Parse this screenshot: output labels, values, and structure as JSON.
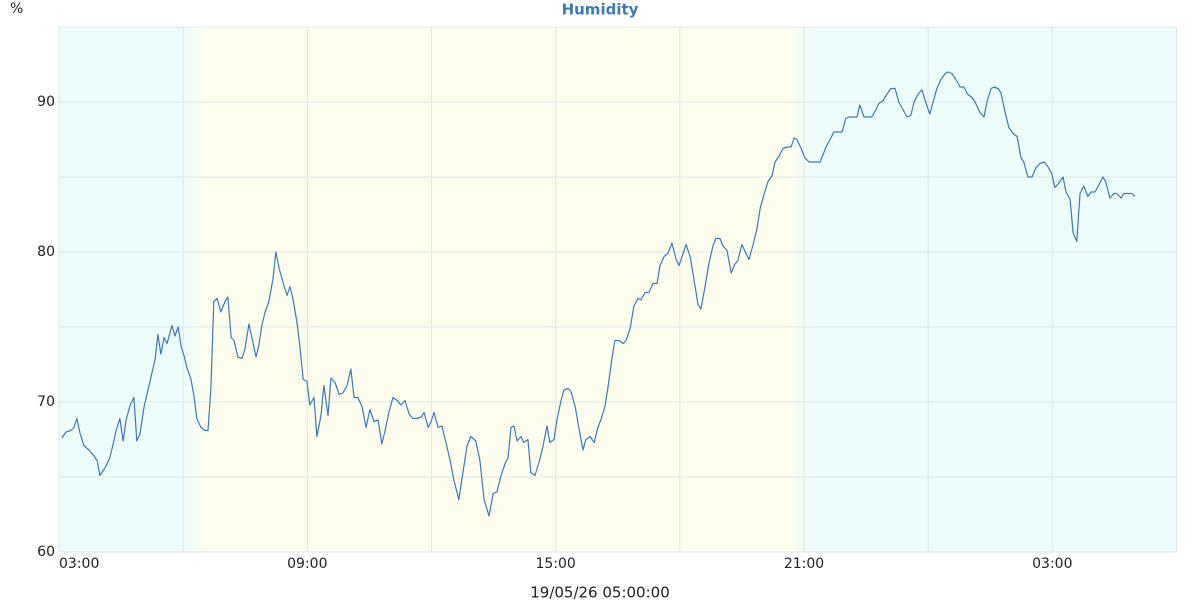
{
  "chart_data": {
    "type": "line",
    "title": "Humidity",
    "y_unit_label": "%",
    "xlabel": "19/05/26 05:00:00",
    "color": "#3d7ab8",
    "grid": true,
    "xlim": [
      0,
      27
    ],
    "ylim": [
      60,
      95
    ],
    "xticks": [
      {
        "value": 0,
        "label": "03:00"
      },
      {
        "value": 6,
        "label": "09:00"
      },
      {
        "value": 12,
        "label": "15:00"
      },
      {
        "value": 18,
        "label": "21:00"
      },
      {
        "value": 24,
        "label": "03:00"
      }
    ],
    "minor_xticks": [
      3,
      9,
      15,
      21,
      27
    ],
    "yticks": [
      60,
      70,
      80,
      90
    ],
    "minor_yticks": [
      65,
      75,
      85,
      95
    ],
    "bands": [
      {
        "from": 0,
        "to": 3,
        "color": "#edfcfc"
      },
      {
        "from": 3.6,
        "to": 17.6,
        "color": "#fdfdee"
      },
      {
        "from": 18.3,
        "to": 27,
        "color": "#edfcfc"
      }
    ],
    "x": [
      0.07,
      0.17,
      0.29,
      0.36,
      0.43,
      0.51,
      0.6,
      0.72,
      0.82,
      0.92,
      0.99,
      1.11,
      1.23,
      1.3,
      1.38,
      1.47,
      1.55,
      1.62,
      1.72,
      1.81,
      1.88,
      1.96,
      2.05,
      2.15,
      2.25,
      2.32,
      2.39,
      2.46,
      2.54,
      2.61,
      2.73,
      2.8,
      2.88,
      2.95,
      3.02,
      3.09,
      3.19,
      3.26,
      3.33,
      3.43,
      3.53,
      3.6,
      3.67,
      3.74,
      3.82,
      3.91,
      4.01,
      4.08,
      4.16,
      4.23,
      4.32,
      4.42,
      4.49,
      4.59,
      4.66,
      4.76,
      4.83,
      4.9,
      4.98,
      5.07,
      5.17,
      5.24,
      5.32,
      5.41,
      5.51,
      5.58,
      5.65,
      5.75,
      5.82,
      5.9,
      5.99,
      6.06,
      6.16,
      6.23,
      6.33,
      6.4,
      6.5,
      6.57,
      6.67,
      6.77,
      6.86,
      6.96,
      7.05,
      7.13,
      7.22,
      7.32,
      7.42,
      7.51,
      7.61,
      7.71,
      7.8,
      7.88,
      7.97,
      8.07,
      8.17,
      8.26,
      8.36,
      8.46,
      8.55,
      8.65,
      8.75,
      8.82,
      8.92,
      8.99,
      9.06,
      9.16,
      9.25,
      9.35,
      9.45,
      9.54,
      9.66,
      9.76,
      9.86,
      9.95,
      10.07,
      10.17,
      10.27,
      10.39,
      10.49,
      10.58,
      10.68,
      10.78,
      10.85,
      10.92,
      10.99,
      11.07,
      11.16,
      11.23,
      11.33,
      11.4,
      11.5,
      11.6,
      11.69,
      11.79,
      11.86,
      11.96,
      12.03,
      12.13,
      12.2,
      12.3,
      12.37,
      12.47,
      12.56,
      12.66,
      12.73,
      12.83,
      12.93,
      13.02,
      13.09,
      13.19,
      13.26,
      13.36,
      13.43,
      13.53,
      13.63,
      13.7,
      13.8,
      13.89,
      13.99,
      14.06,
      14.16,
      14.25,
      14.35,
      14.45,
      14.52,
      14.62,
      14.71,
      14.81,
      14.91,
      14.98,
      15.08,
      15.15,
      15.25,
      15.34,
      15.44,
      15.51,
      15.61,
      15.7,
      15.8,
      15.87,
      15.97,
      16.04,
      16.14,
      16.24,
      16.33,
      16.4,
      16.5,
      16.6,
      16.67,
      16.77,
      16.86,
      16.94,
      17.03,
      17.13,
      17.23,
      17.3,
      17.4,
      17.49,
      17.59,
      17.69,
      17.76,
      17.83,
      17.93,
      18.02,
      18.12,
      18.22,
      18.31,
      18.39,
      18.46,
      18.55,
      18.63,
      18.72,
      18.82,
      18.92,
      19.01,
      19.09,
      19.18,
      19.28,
      19.35,
      19.45,
      19.55,
      19.64,
      19.74,
      19.81,
      19.91,
      20.0,
      20.1,
      20.2,
      20.29,
      20.39,
      20.49,
      20.58,
      20.66,
      20.75,
      20.85,
      20.95,
      21.04,
      21.14,
      21.21,
      21.31,
      21.41,
      21.48,
      21.57,
      21.67,
      21.77,
      21.86,
      21.96,
      22.06,
      22.15,
      22.25,
      22.35,
      22.42,
      22.52,
      22.59,
      22.69,
      22.76,
      22.86,
      22.95,
      23.05,
      23.15,
      23.24,
      23.31,
      23.41,
      23.51,
      23.6,
      23.7,
      23.8,
      23.89,
      23.99,
      24.06,
      24.16,
      24.26,
      24.33,
      24.43,
      24.5,
      24.59,
      24.67,
      24.76,
      24.86,
      24.93,
      25.03,
      25.13,
      25.22,
      25.29,
      25.39,
      25.49,
      25.56,
      25.66,
      25.73,
      25.83,
      25.92,
      26.0
    ],
    "values": [
      67.6,
      68.0,
      68.1,
      68.3,
      68.9,
      67.9,
      67.1,
      66.8,
      66.5,
      66.1,
      65.1,
      65.6,
      66.3,
      67.1,
      68.1,
      68.9,
      67.4,
      68.8,
      69.8,
      70.3,
      67.4,
      67.9,
      69.6,
      70.8,
      72.0,
      72.8,
      74.5,
      73.2,
      74.3,
      73.9,
      75.1,
      74.4,
      75.0,
      73.7,
      73.1,
      72.3,
      71.5,
      70.4,
      68.9,
      68.3,
      68.1,
      68.1,
      70.9,
      76.7,
      76.9,
      76.0,
      76.7,
      77.0,
      74.3,
      74.1,
      73.0,
      72.9,
      73.5,
      75.2,
      74.3,
      73.0,
      73.8,
      75.1,
      76.0,
      76.7,
      78.2,
      80.0,
      78.9,
      78.0,
      77.1,
      77.7,
      76.9,
      75.3,
      73.7,
      71.5,
      71.4,
      69.8,
      70.3,
      67.7,
      69.1,
      71.1,
      69.1,
      71.6,
      71.3,
      70.5,
      70.6,
      71.1,
      72.2,
      70.3,
      70.3,
      69.7,
      68.3,
      69.5,
      68.7,
      68.8,
      67.2,
      68.1,
      69.3,
      70.3,
      70.1,
      69.8,
      70.1,
      69.2,
      68.9,
      68.9,
      69.0,
      69.3,
      68.3,
      68.7,
      69.3,
      68.3,
      68.4,
      67.3,
      66.1,
      64.8,
      63.5,
      65.3,
      67.1,
      67.7,
      67.4,
      66.1,
      63.5,
      62.4,
      63.9,
      64.0,
      65.1,
      65.9,
      66.3,
      68.3,
      68.4,
      67.4,
      67.7,
      67.3,
      67.5,
      65.3,
      65.1,
      66.0,
      67.0,
      68.4,
      67.3,
      67.5,
      68.8,
      70.1,
      70.8,
      70.9,
      70.7,
      69.7,
      68.3,
      66.8,
      67.5,
      67.7,
      67.3,
      68.3,
      68.8,
      69.7,
      70.9,
      72.9,
      74.1,
      74.1,
      73.9,
      74.1,
      74.9,
      76.4,
      76.9,
      76.8,
      77.3,
      77.3,
      77.9,
      77.9,
      79.1,
      79.7,
      79.9,
      80.6,
      79.5,
      79.1,
      79.9,
      80.5,
      79.7,
      78.2,
      76.5,
      76.2,
      77.7,
      79.2,
      80.4,
      80.9,
      80.9,
      80.4,
      80.1,
      78.6,
      79.2,
      79.4,
      80.5,
      79.9,
      79.5,
      80.5,
      81.5,
      82.9,
      83.8,
      84.7,
      85.1,
      86.0,
      86.4,
      86.9,
      87.0,
      87.0,
      87.6,
      87.5,
      86.9,
      86.3,
      86.0,
      86.0,
      86.0,
      86.0,
      86.5,
      87.1,
      87.5,
      88.0,
      88.0,
      88.0,
      88.9,
      89.0,
      89.0,
      89.0,
      89.8,
      89.0,
      89.0,
      89.0,
      89.5,
      89.9,
      90.1,
      90.5,
      90.9,
      90.9,
      90.0,
      89.5,
      89.0,
      89.1,
      90.0,
      90.5,
      90.8,
      89.9,
      89.2,
      90.2,
      90.9,
      91.5,
      91.9,
      92.0,
      91.9,
      91.5,
      91.0,
      91.0,
      90.5,
      90.3,
      89.9,
      89.3,
      89.0,
      90.0,
      90.9,
      91.0,
      90.9,
      90.6,
      89.3,
      88.3,
      87.9,
      87.7,
      86.3,
      86.0,
      85.0,
      85.0,
      85.6,
      85.9,
      86.0,
      85.7,
      85.2,
      84.3,
      84.6,
      85.0,
      84.0,
      83.5,
      81.3,
      80.7,
      83.9,
      84.4,
      83.7,
      84.0,
      84.0,
      84.5,
      85.0,
      84.7,
      83.6,
      83.9,
      83.9,
      83.6,
      83.9,
      83.9,
      83.9,
      83.7
    ]
  }
}
